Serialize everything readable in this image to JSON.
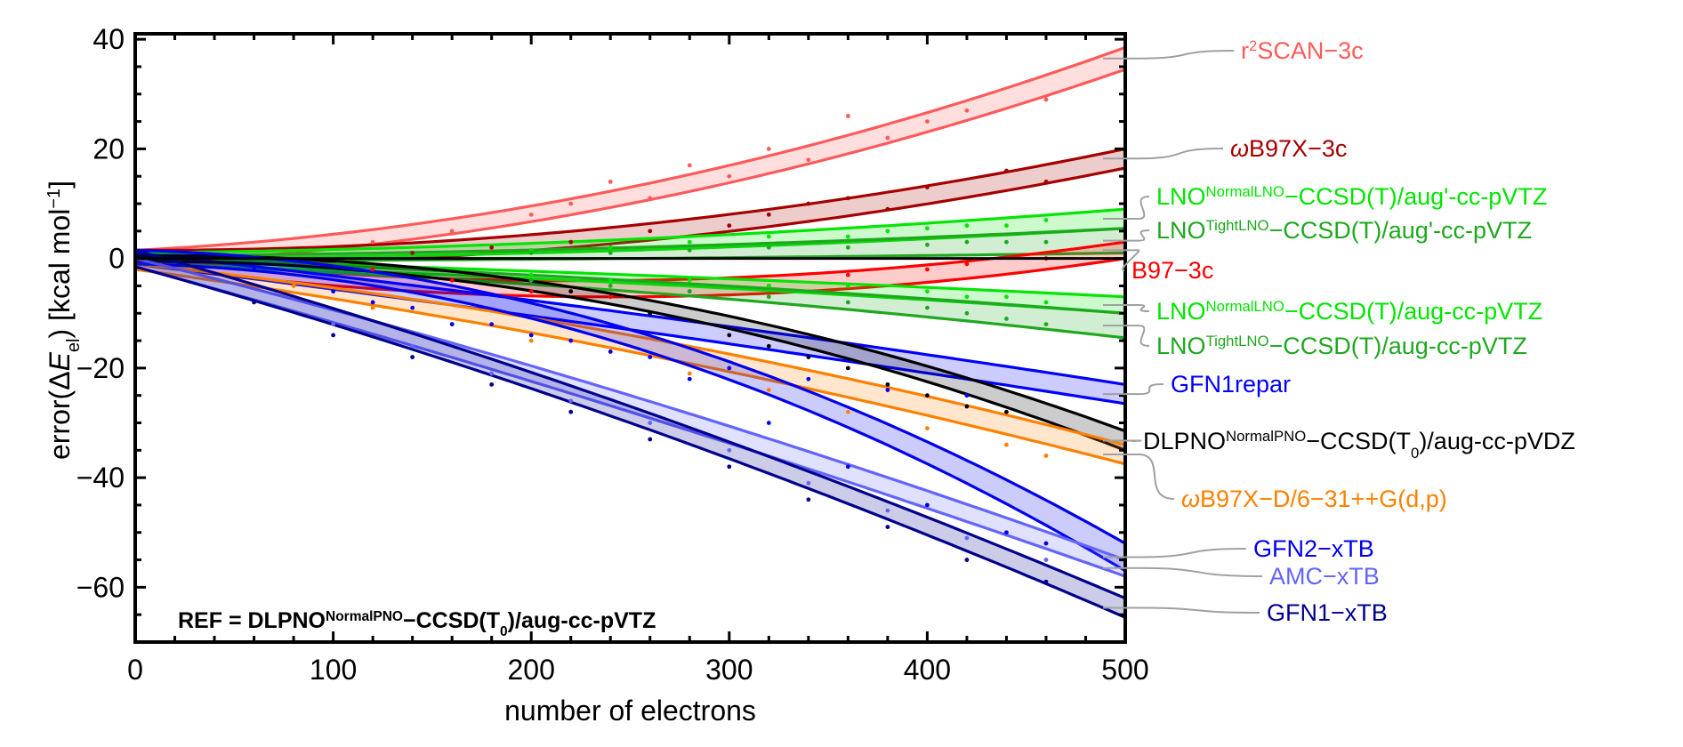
{
  "chart_data": {
    "type": "scatter",
    "xlabel": "number of electrons",
    "ylabel": {
      "pre": "error(Δ",
      "var": "E",
      "sub": "el",
      "post": ")  [kcal mol",
      "sup": "−1",
      "end": "]"
    },
    "xlim": [
      0,
      500
    ],
    "ylim": [
      -70,
      41
    ],
    "xticks": [
      0,
      100,
      200,
      300,
      400,
      500
    ],
    "yticks": [
      40,
      20,
      0,
      -20,
      -40,
      -60
    ],
    "xtick_labels": [
      "0",
      "100",
      "200",
      "300",
      "400",
      "500"
    ],
    "ytick_labels": [
      "40",
      "20",
      "0",
      "−20",
      "−40",
      "−60"
    ],
    "grid": false,
    "zero_line": true,
    "reference_note": [
      {
        "t": "REF = DLPNO"
      },
      {
        "t": "NormalPNO",
        "s": "sup"
      },
      {
        "t": "−CCSD(T"
      },
      {
        "t": "0",
        "s": "sub"
      },
      {
        "t": ")/aug-cc-pVTZ"
      }
    ],
    "series": [
      {
        "name": "r2SCAN-3c",
        "label": [
          {
            "t": "r"
          },
          {
            "t": "2",
            "s": "sup"
          },
          {
            "t": "SCAN−3c"
          }
        ],
        "color": "#ff5a5a",
        "upper": [
          1.5,
          13,
          38.5
        ],
        "lower": [
          -1,
          10,
          34.5
        ],
        "points": [
          [
            120,
            3
          ],
          [
            160,
            5
          ],
          [
            200,
            8
          ],
          [
            220,
            10
          ],
          [
            240,
            14
          ],
          [
            260,
            11
          ],
          [
            280,
            17
          ],
          [
            300,
            15
          ],
          [
            320,
            20
          ],
          [
            340,
            18
          ],
          [
            360,
            26
          ],
          [
            380,
            22
          ],
          [
            400,
            25
          ],
          [
            420,
            27
          ],
          [
            460,
            29
          ]
        ]
      },
      {
        "name": "ωB97X-3c",
        "label": [
          {
            "t": "ω",
            "s": "it"
          },
          {
            "t": "B97X−3c"
          }
        ],
        "color": "#a50000",
        "upper": [
          1.5,
          6,
          20
        ],
        "lower": [
          -1,
          3,
          16.5
        ],
        "points": [
          [
            140,
            1
          ],
          [
            180,
            2
          ],
          [
            220,
            3
          ],
          [
            260,
            5
          ],
          [
            300,
            6
          ],
          [
            320,
            8
          ],
          [
            340,
            10
          ],
          [
            360,
            11
          ],
          [
            380,
            9
          ],
          [
            400,
            13
          ],
          [
            440,
            16
          ],
          [
            460,
            14
          ]
        ]
      },
      {
        "name": "LNO NormalLNO-CCSD(T)/aug'-cc-pVTZ",
        "label": [
          {
            "t": "LNO"
          },
          {
            "t": "NormalLNO",
            "s": "sup"
          },
          {
            "t": "−CCSD(T)/aug'-cc-pVTZ"
          }
        ],
        "color": "#00e600",
        "upper": [
          1,
          3.5,
          9
        ],
        "lower": [
          0,
          1.5,
          5.5
        ],
        "points": [
          [
            200,
            1.5
          ],
          [
            240,
            2
          ],
          [
            280,
            3
          ],
          [
            320,
            4
          ],
          [
            360,
            4
          ],
          [
            380,
            5
          ],
          [
            400,
            5.5
          ],
          [
            420,
            6
          ],
          [
            440,
            6
          ],
          [
            460,
            7
          ]
        ]
      },
      {
        "name": "LNO TightLNO-CCSD(T)/aug'-cc-pVTZ",
        "label": [
          {
            "t": "LNO"
          },
          {
            "t": "TightLNO",
            "s": "sup"
          },
          {
            "t": "−CCSD(T)/aug'-cc-pVTZ"
          }
        ],
        "color": "#1fa81f",
        "upper": [
          0.5,
          2,
          5.5
        ],
        "lower": [
          -0.5,
          0,
          1
        ],
        "points": [
          [
            200,
            1
          ],
          [
            240,
            1
          ],
          [
            280,
            1.5
          ],
          [
            320,
            2
          ],
          [
            360,
            2
          ],
          [
            400,
            2.5
          ],
          [
            420,
            3
          ],
          [
            440,
            3
          ],
          [
            460,
            3
          ]
        ]
      },
      {
        "name": "B97-3c",
        "label": [
          {
            "t": "B97−3c"
          }
        ],
        "color": "#ff0000",
        "upper": [
          0.5,
          -4,
          3
        ],
        "lower": [
          -1,
          -7,
          0
        ],
        "points": [
          [
            120,
            -2
          ],
          [
            160,
            -4
          ],
          [
            200,
            -6
          ],
          [
            240,
            -7
          ],
          [
            280,
            -6
          ],
          [
            320,
            -5
          ],
          [
            360,
            -3
          ],
          [
            400,
            -2
          ],
          [
            420,
            -1
          ],
          [
            460,
            0
          ]
        ]
      },
      {
        "name": "LNO NormalLNO-CCSD(T)/aug-cc-pVTZ",
        "label": [
          {
            "t": "LNO"
          },
          {
            "t": "NormalLNO",
            "s": "sup"
          },
          {
            "t": "−CCSD(T)/aug-cc-pVTZ"
          }
        ],
        "color": "#00e600",
        "upper": [
          0,
          -3,
          -7
        ],
        "lower": [
          -1,
          -4.5,
          -10
        ],
        "points": [
          [
            200,
            -3
          ],
          [
            240,
            -4
          ],
          [
            280,
            -4
          ],
          [
            320,
            -5
          ],
          [
            360,
            -5
          ],
          [
            400,
            -6
          ],
          [
            420,
            -7
          ],
          [
            440,
            -7
          ],
          [
            460,
            -8
          ]
        ]
      },
      {
        "name": "LNO TightLNO-CCSD(T)/aug-cc-pVTZ",
        "label": [
          {
            "t": "LNO"
          },
          {
            "t": "TightLNO",
            "s": "sup"
          },
          {
            "t": "−CCSD(T)/aug-cc-pVTZ"
          }
        ],
        "color": "#1fa81f",
        "upper": [
          0,
          -4,
          -10
        ],
        "lower": [
          -1,
          -6,
          -14.5
        ],
        "points": [
          [
            200,
            -4
          ],
          [
            240,
            -5
          ],
          [
            280,
            -6
          ],
          [
            320,
            -7
          ],
          [
            360,
            -8
          ],
          [
            400,
            -9
          ],
          [
            420,
            -10
          ],
          [
            440,
            -11
          ],
          [
            460,
            -12
          ]
        ]
      },
      {
        "name": "GFN1repar",
        "label": [
          {
            "t": "GFN1repar"
          }
        ],
        "color": "#0000ff",
        "upper": [
          1,
          -10,
          -23
        ],
        "lower": [
          -1,
          -13,
          -26.5
        ],
        "points": [
          [
            60,
            -2
          ],
          [
            100,
            -6
          ],
          [
            140,
            -9
          ],
          [
            180,
            -12
          ],
          [
            220,
            -15
          ],
          [
            260,
            -18
          ],
          [
            300,
            -20
          ],
          [
            340,
            -22
          ],
          [
            380,
            -24
          ],
          [
            420,
            -25
          ]
        ]
      },
      {
        "name": "DLPNO NormalPNO-CCSD(T0)/aug-cc-pVDZ",
        "label": [
          {
            "t": "DLPNO"
          },
          {
            "t": "NormalPNO",
            "s": "sup"
          },
          {
            "t": "−CCSD(T"
          },
          {
            "t": "0",
            "s": "sub"
          },
          {
            "t": ")/aug-cc-pVDZ"
          }
        ],
        "color": "#000000",
        "upper": [
          0.5,
          -7,
          -31.5
        ],
        "lower": [
          -0.5,
          -9,
          -35
        ],
        "points": [
          [
            220,
            -6
          ],
          [
            260,
            -10
          ],
          [
            300,
            -14
          ],
          [
            320,
            -16
          ],
          [
            340,
            -18
          ],
          [
            360,
            -20
          ],
          [
            380,
            -23
          ],
          [
            400,
            -25
          ],
          [
            420,
            -27
          ],
          [
            440,
            -28
          ]
        ]
      },
      {
        "name": "ωB97X-D/6-31++G(d,p)",
        "label": [
          {
            "t": "ω",
            "s": "it"
          },
          {
            "t": "B97X−D/6−31++G(d,p)"
          }
        ],
        "color": "#ff8000",
        "upper": [
          -1,
          -14,
          -34
        ],
        "lower": [
          -2,
          -17,
          -37.5
        ],
        "points": [
          [
            80,
            -5
          ],
          [
            120,
            -9
          ],
          [
            160,
            -12
          ],
          [
            200,
            -15
          ],
          [
            240,
            -17
          ],
          [
            280,
            -21
          ],
          [
            320,
            -24
          ],
          [
            360,
            -28
          ],
          [
            400,
            -31
          ],
          [
            440,
            -34
          ],
          [
            460,
            -36
          ]
        ]
      },
      {
        "name": "GFN2-xTB",
        "label": [
          {
            "t": "GFN2−xTB"
          }
        ],
        "color": "#0000ee",
        "upper": [
          1.5,
          -13,
          -52
        ],
        "lower": [
          -1,
          -16,
          -57
        ],
        "points": [
          [
            120,
            -8
          ],
          [
            160,
            -12
          ],
          [
            200,
            -14
          ],
          [
            240,
            -17
          ],
          [
            280,
            -22
          ],
          [
            320,
            -30
          ],
          [
            360,
            -38
          ],
          [
            400,
            -45
          ],
          [
            440,
            -50
          ],
          [
            460,
            -52
          ]
        ]
      },
      {
        "name": "AMC-xTB",
        "label": [
          {
            "t": "AMC−xTB"
          }
        ],
        "color": "#6464ff",
        "upper": [
          0,
          -25,
          -55
        ],
        "lower": [
          -1.5,
          -28,
          -58
        ],
        "points": [
          [
            100,
            -12
          ],
          [
            140,
            -16
          ],
          [
            180,
            -21
          ],
          [
            220,
            -26
          ],
          [
            260,
            -30
          ],
          [
            300,
            -35
          ],
          [
            340,
            -41
          ],
          [
            380,
            -46
          ],
          [
            420,
            -51
          ],
          [
            460,
            -55
          ]
        ]
      },
      {
        "name": "GFN1-xTB",
        "label": [
          {
            "t": "GFN1−xTB"
          }
        ],
        "color": "#00008c",
        "upper": [
          1.5,
          -27,
          -62
        ],
        "lower": [
          -1.5,
          -30,
          -65.5
        ],
        "points": [
          [
            60,
            -8
          ],
          [
            100,
            -14
          ],
          [
            140,
            -18
          ],
          [
            180,
            -23
          ],
          [
            220,
            -28
          ],
          [
            260,
            -33
          ],
          [
            300,
            -38
          ],
          [
            340,
            -44
          ],
          [
            380,
            -49
          ],
          [
            420,
            -55
          ],
          [
            460,
            -59
          ]
        ]
      }
    ]
  }
}
